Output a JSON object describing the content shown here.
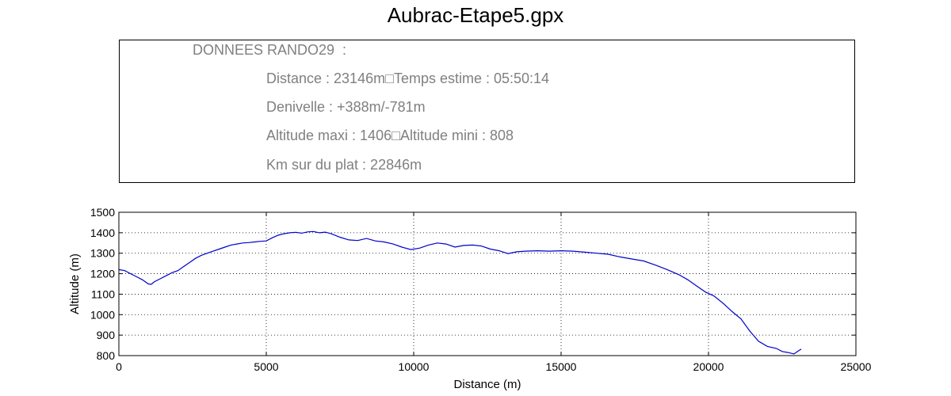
{
  "title": "Aubrac-Etape5.gpx",
  "info": {
    "header": "DONNEES RANDO29  :",
    "distance_line": "Distance : 23146m□Temps estime : 05:50:14",
    "denivelle_line": "Denivelle : +388m/-781m",
    "altitude_line": "Altitude maxi : 1406□Altitude mini : 808",
    "plat_line": "Km sur du plat : 22846m"
  },
  "colors": {
    "line": "#0000cc",
    "info_text": "#808080"
  },
  "chart_data": {
    "type": "line",
    "xlabel": "Distance (m)",
    "ylabel": "Altitude (m)",
    "xlim": [
      0,
      25000
    ],
    "ylim": [
      800,
      1500
    ],
    "xticks": [
      "0",
      "5000",
      "10000",
      "15000",
      "20000",
      "25000"
    ],
    "yticks": [
      "800",
      "900",
      "1000",
      "1100",
      "1200",
      "1300",
      "1400",
      "1500"
    ],
    "grid": true,
    "series": [
      {
        "x": [
          0,
          200,
          400,
          600,
          800,
          1000,
          1100,
          1200,
          1400,
          1600,
          1800,
          2000,
          2200,
          2400,
          2600,
          2800,
          3000,
          3200,
          3400,
          3600,
          3800,
          4000,
          4200,
          4400,
          4600,
          4800,
          5000,
          5200,
          5400,
          5600,
          5800,
          6000,
          6200,
          6400,
          6600,
          6800,
          7000,
          7200,
          7500,
          7800,
          8100,
          8400,
          8700,
          9000,
          9300,
          9600,
          9900,
          10200,
          10500,
          10800,
          11100,
          11400,
          11700,
          12000,
          12300,
          12600,
          12900,
          13200,
          13500,
          13800,
          14200,
          14600,
          15000,
          15400,
          15800,
          16200,
          16600,
          17000,
          17400,
          17800,
          18200,
          18600,
          19000,
          19300,
          19600,
          19900,
          20200,
          20500,
          20800,
          21100,
          21400,
          21700,
          22000,
          22300,
          22500,
          22700,
          22900,
          23000,
          23146
        ],
        "y": [
          1220,
          1215,
          1200,
          1185,
          1170,
          1150,
          1148,
          1160,
          1175,
          1190,
          1205,
          1215,
          1235,
          1255,
          1275,
          1290,
          1300,
          1310,
          1320,
          1330,
          1340,
          1345,
          1350,
          1352,
          1355,
          1358,
          1360,
          1375,
          1388,
          1395,
          1400,
          1402,
          1398,
          1404,
          1406,
          1400,
          1403,
          1395,
          1378,
          1365,
          1362,
          1372,
          1360,
          1355,
          1345,
          1330,
          1318,
          1325,
          1340,
          1350,
          1345,
          1330,
          1338,
          1340,
          1335,
          1320,
          1312,
          1298,
          1307,
          1310,
          1312,
          1310,
          1312,
          1310,
          1305,
          1300,
          1295,
          1282,
          1272,
          1262,
          1242,
          1220,
          1195,
          1170,
          1140,
          1110,
          1090,
          1055,
          1015,
          980,
          920,
          870,
          845,
          835,
          820,
          815,
          808,
          818,
          832
        ]
      }
    ]
  }
}
